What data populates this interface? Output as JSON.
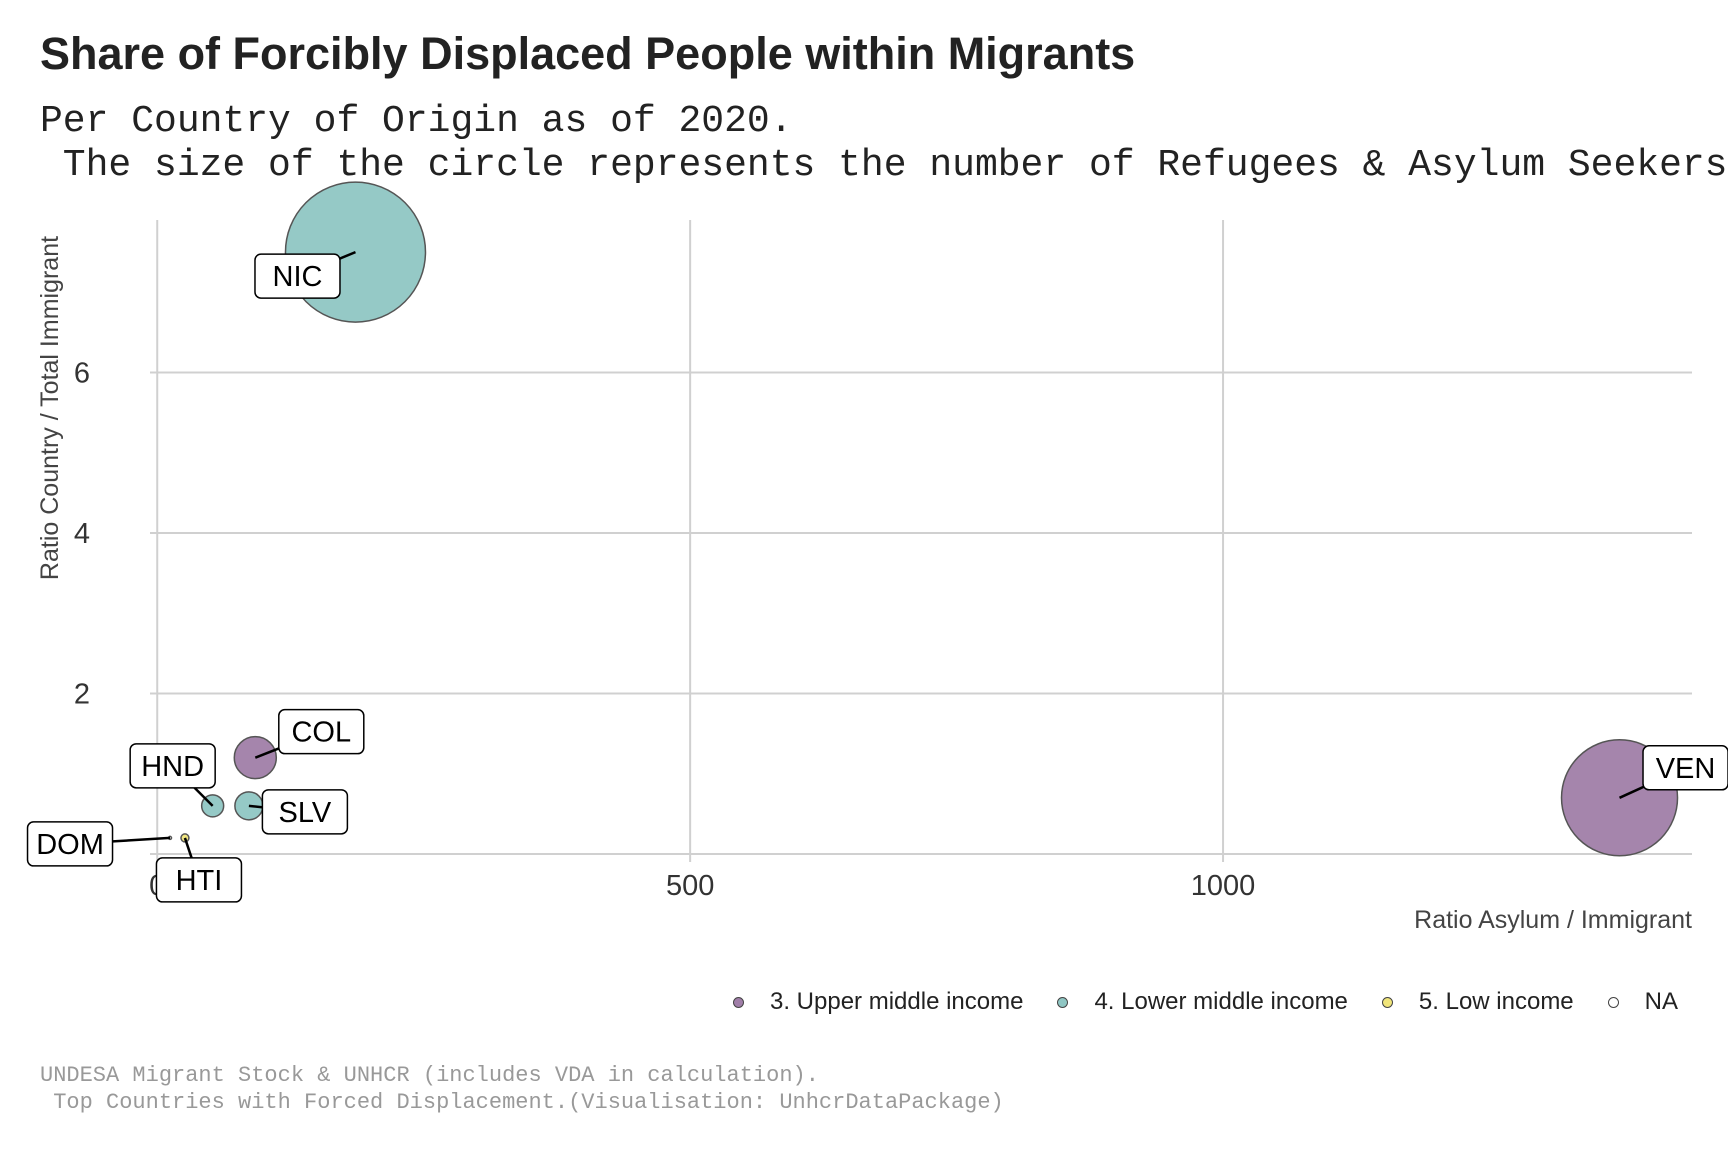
{
  "chart_data": {
    "type": "scatter",
    "title": "Share of Forcibly Displaced People within Migrants",
    "subtitle": "Per Country of Origin as of 2020.\n The size of the circle represents the number of Refugees & Asylum Seekers",
    "caption": "UNDESA Migrant Stock & UNHCR (includes VDA in calculation).\n Top Countries with Forced Displacement.(Visualisation: UnhcrDataPackage)",
    "xlabel": "Ratio Asylum / Immigrant",
    "ylabel": "Ratio Country / Total Immigrant",
    "xlim": [
      -110,
      1440
    ],
    "ylim": [
      -0.1,
      7.9
    ],
    "x_ticks": [
      "0",
      "500",
      "1000"
    ],
    "x_tick_values": [
      0,
      500,
      1000
    ],
    "y_ticks": [
      "0",
      "2",
      "4",
      "6"
    ],
    "y_tick_values": [
      0,
      2,
      4,
      6
    ],
    "grid": true,
    "legend_position": "bottom-right",
    "legend": [
      {
        "label": "3. Upper middle income",
        "color": "#a07ea8"
      },
      {
        "label": "4. Lower middle income",
        "color": "#8fc6c3"
      },
      {
        "label": "5. Low income",
        "color": "#f0e57a"
      },
      {
        "label": "NA",
        "color": "#ffffff"
      }
    ],
    "points": [
      {
        "label": "NIC",
        "x": 186,
        "y": 7.5,
        "size": 70,
        "group": "4. Lower middle income",
        "color": "#8fc6c3"
      },
      {
        "label": "VEN",
        "x": 1372,
        "y": 0.7,
        "size": 58,
        "group": "3. Upper middle income",
        "color": "#a07ea8"
      },
      {
        "label": "COL",
        "x": 92,
        "y": 1.2,
        "size": 21,
        "group": "3. Upper middle income",
        "color": "#a07ea8"
      },
      {
        "label": "SLV",
        "x": 86,
        "y": 0.6,
        "size": 14,
        "group": "4. Lower middle income",
        "color": "#8fc6c3"
      },
      {
        "label": "HND",
        "x": 52,
        "y": 0.6,
        "size": 11,
        "group": "4. Lower middle income",
        "color": "#8fc6c3"
      },
      {
        "label": "HTI",
        "x": 26,
        "y": 0.2,
        "size": 4,
        "group": "5. Low income",
        "color": "#f0e57a"
      },
      {
        "label": "DOM",
        "x": 12,
        "y": 0.2,
        "size": 1.5,
        "group": "NA",
        "color": "#ffffff"
      }
    ]
  }
}
